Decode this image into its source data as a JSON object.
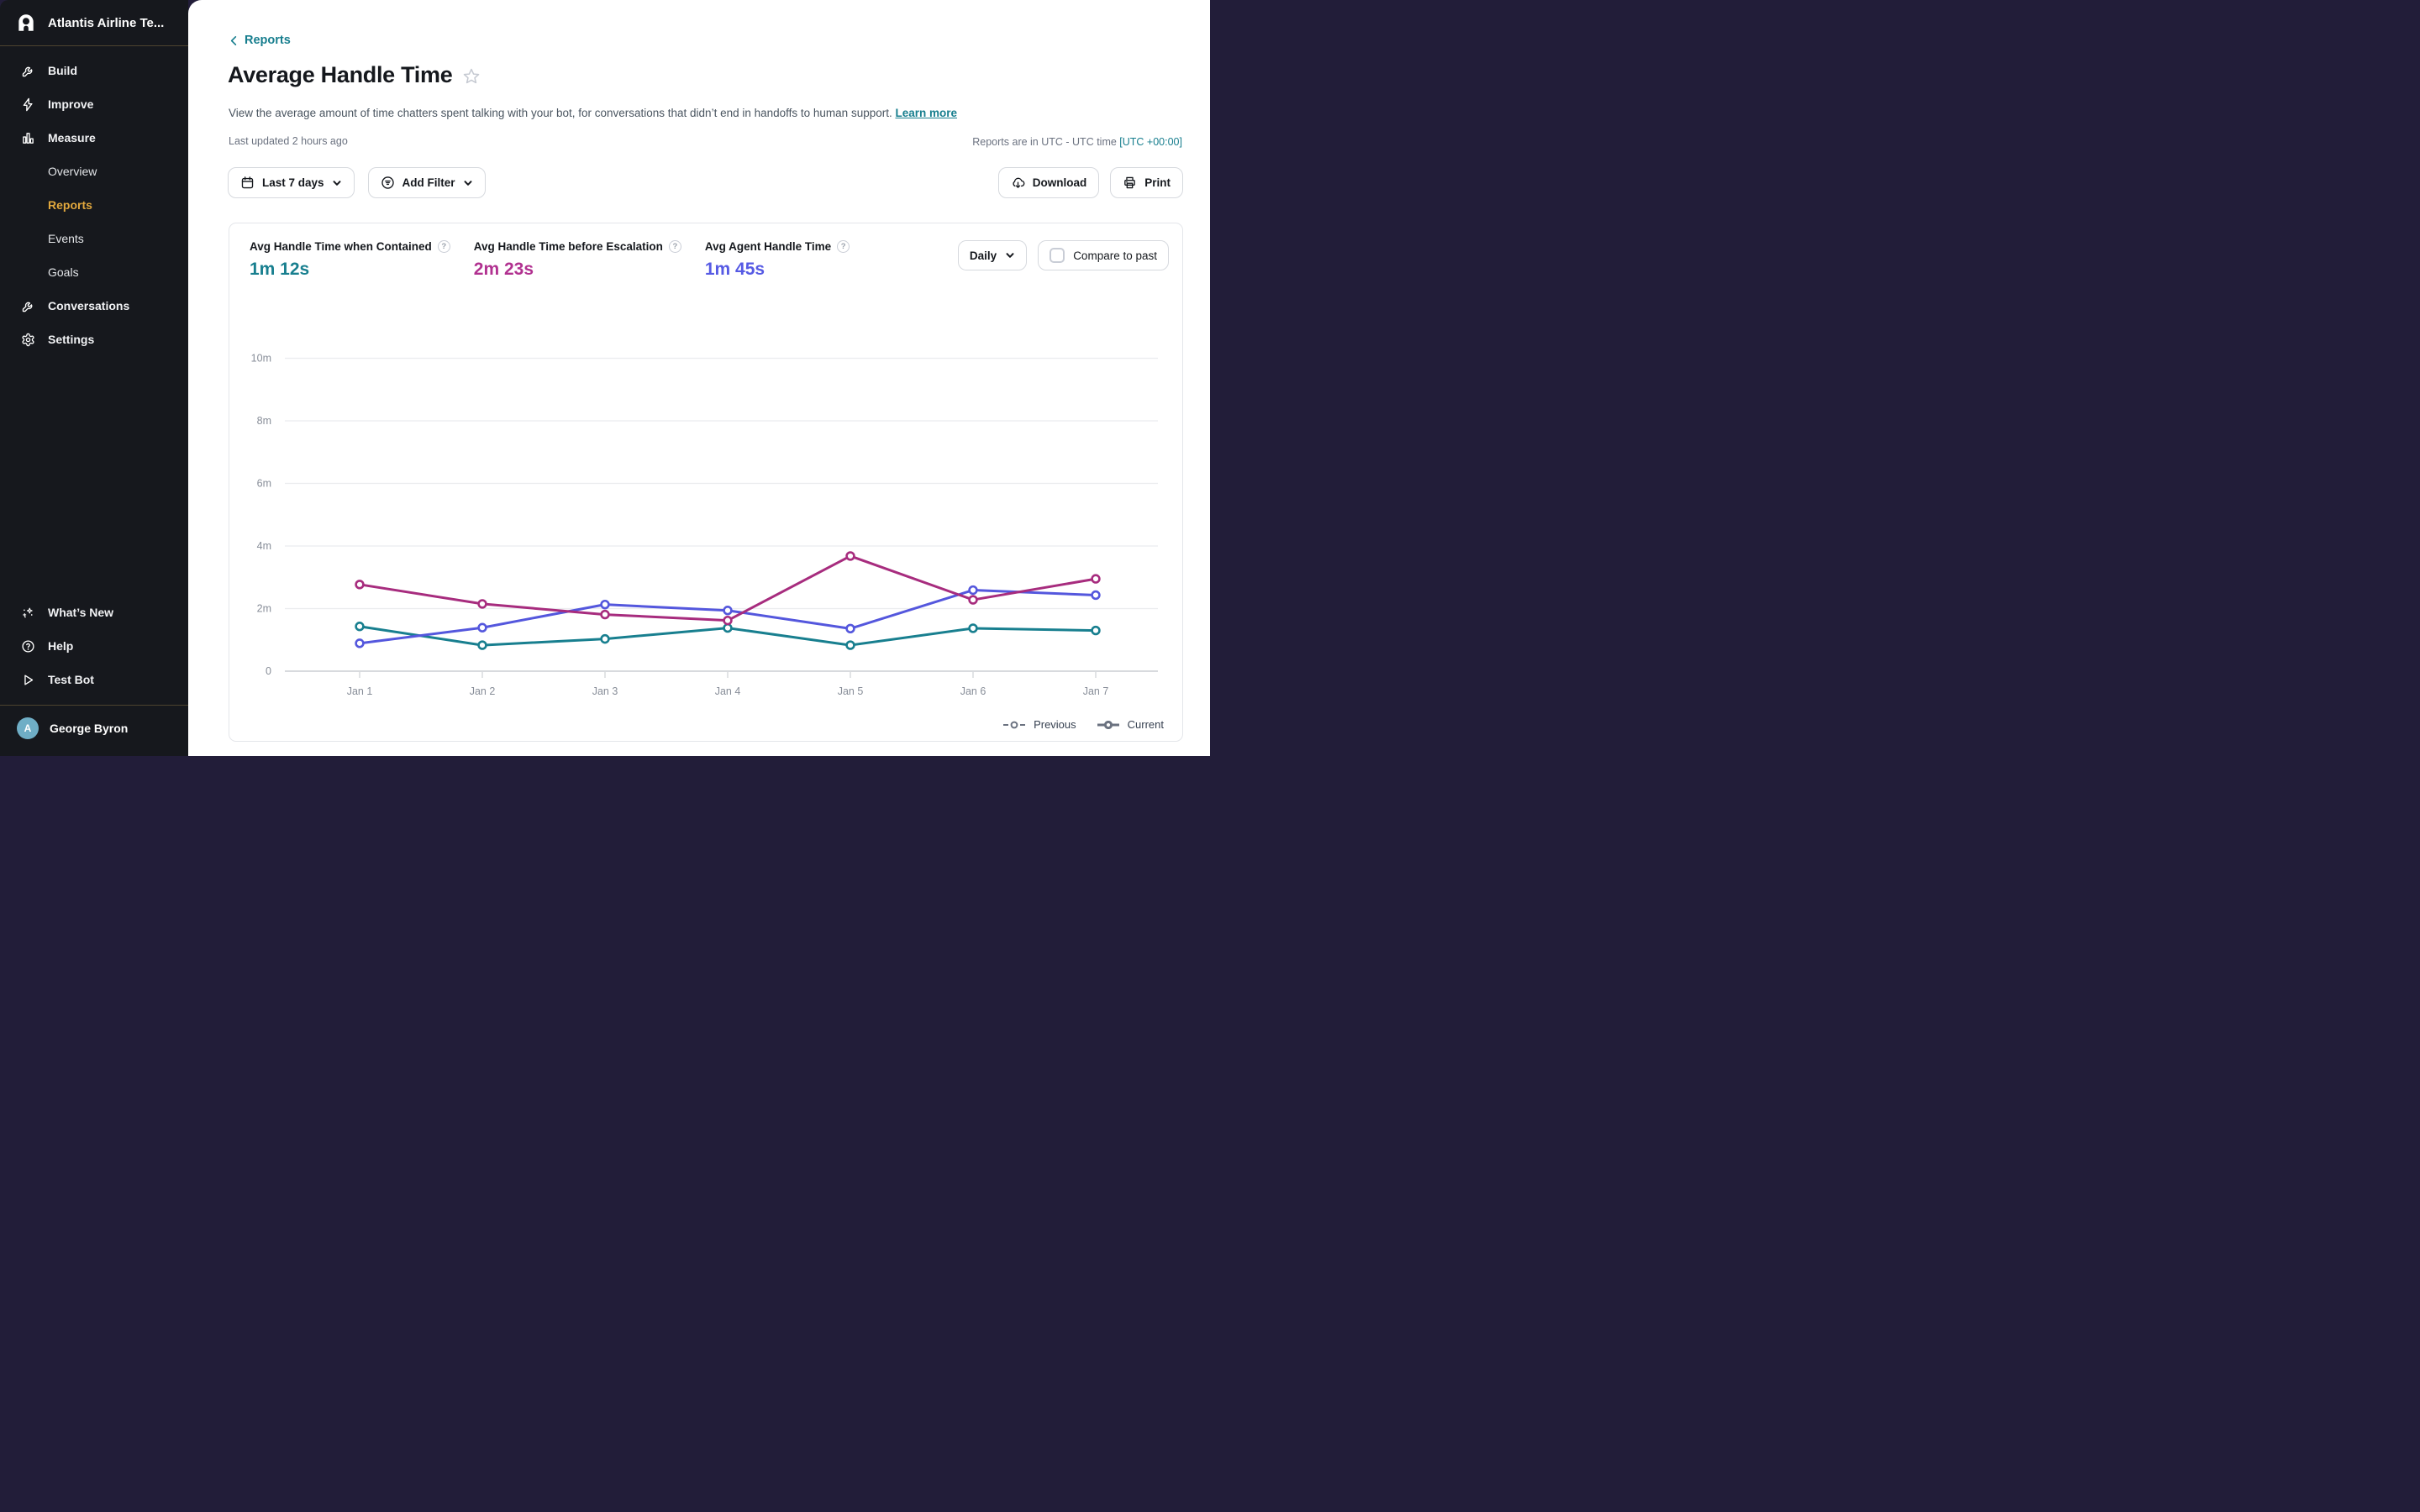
{
  "sidebar": {
    "workspace": "Atlantis Airline Te...",
    "nav": [
      {
        "label": "Build"
      },
      {
        "label": "Improve"
      },
      {
        "label": "Measure"
      },
      {
        "label": "Overview"
      },
      {
        "label": "Reports"
      },
      {
        "label": "Events"
      },
      {
        "label": "Goals"
      },
      {
        "label": "Conversations"
      },
      {
        "label": "Settings"
      }
    ],
    "footer": [
      {
        "label": "What’s New"
      },
      {
        "label": "Help"
      },
      {
        "label": "Test Bot"
      }
    ],
    "user": {
      "name": "George Byron",
      "avatar_initial": "A",
      "avatar_color": "#6faec6"
    },
    "active_color": "#e2a83d"
  },
  "header": {
    "back_link": "Reports",
    "title": "Average Handle Time",
    "description": "View the average amount of time chatters spent talking with your bot, for conversations that didn’t end in handoffs to human support.",
    "learn_more": "Learn more",
    "last_updated": "Last updated 2 hours ago",
    "timezone_note": "Reports are in UTC - UTC time",
    "timezone_link": "[UTC +00:00]"
  },
  "toolbar": {
    "date_range": "Last 7 days",
    "add_filter": "Add Filter",
    "download": "Download",
    "print": "Print"
  },
  "panel": {
    "metrics": [
      {
        "label": "Avg Handle Time when Contained",
        "value": "1m 12s",
        "color": "#187f8f"
      },
      {
        "label": "Avg Handle Time before Escalation",
        "value": "2m 23s",
        "color": "#b13190"
      },
      {
        "label": "Avg Agent Handle Time",
        "value": "1m 45s",
        "color": "#565ae4"
      }
    ],
    "granularity": "Daily",
    "compare_label": "Compare to past",
    "compare_checked": false
  },
  "chart_data": {
    "type": "line",
    "categories": [
      "Jan 1",
      "Jan 2",
      "Jan 3",
      "Jan 4",
      "Jan 5",
      "Jan 6",
      "Jan 7"
    ],
    "y_ticks": [
      {
        "value": 0,
        "label": "0"
      },
      {
        "value": 2,
        "label": "2m"
      },
      {
        "value": 4,
        "label": "4m"
      },
      {
        "value": 6,
        "label": "6m"
      },
      {
        "value": 8,
        "label": "8m"
      },
      {
        "value": 10,
        "label": "10m"
      }
    ],
    "ylim": [
      0,
      10
    ],
    "ylabel_unit": "minutes",
    "grid": true,
    "series": [
      {
        "name": "Avg Handle Time when Contained",
        "color": "#187f8f",
        "values_minutes": [
          1.43,
          0.83,
          1.03,
          1.38,
          0.83,
          1.37,
          1.3
        ]
      },
      {
        "name": "Avg Agent Handle Time",
        "color": "#5457dd",
        "values_minutes": [
          0.89,
          1.39,
          2.13,
          1.94,
          1.36,
          2.59,
          2.43
        ]
      },
      {
        "name": "Avg Handle Time before Escalation",
        "color": "#a72c7e",
        "values_minutes": [
          2.77,
          2.15,
          1.81,
          1.62,
          3.68,
          2.28,
          2.95
        ]
      }
    ],
    "legend": [
      {
        "label": "Previous",
        "style": "dashed"
      },
      {
        "label": "Current",
        "style": "solid"
      }
    ],
    "legend_position": "bottom-right"
  }
}
